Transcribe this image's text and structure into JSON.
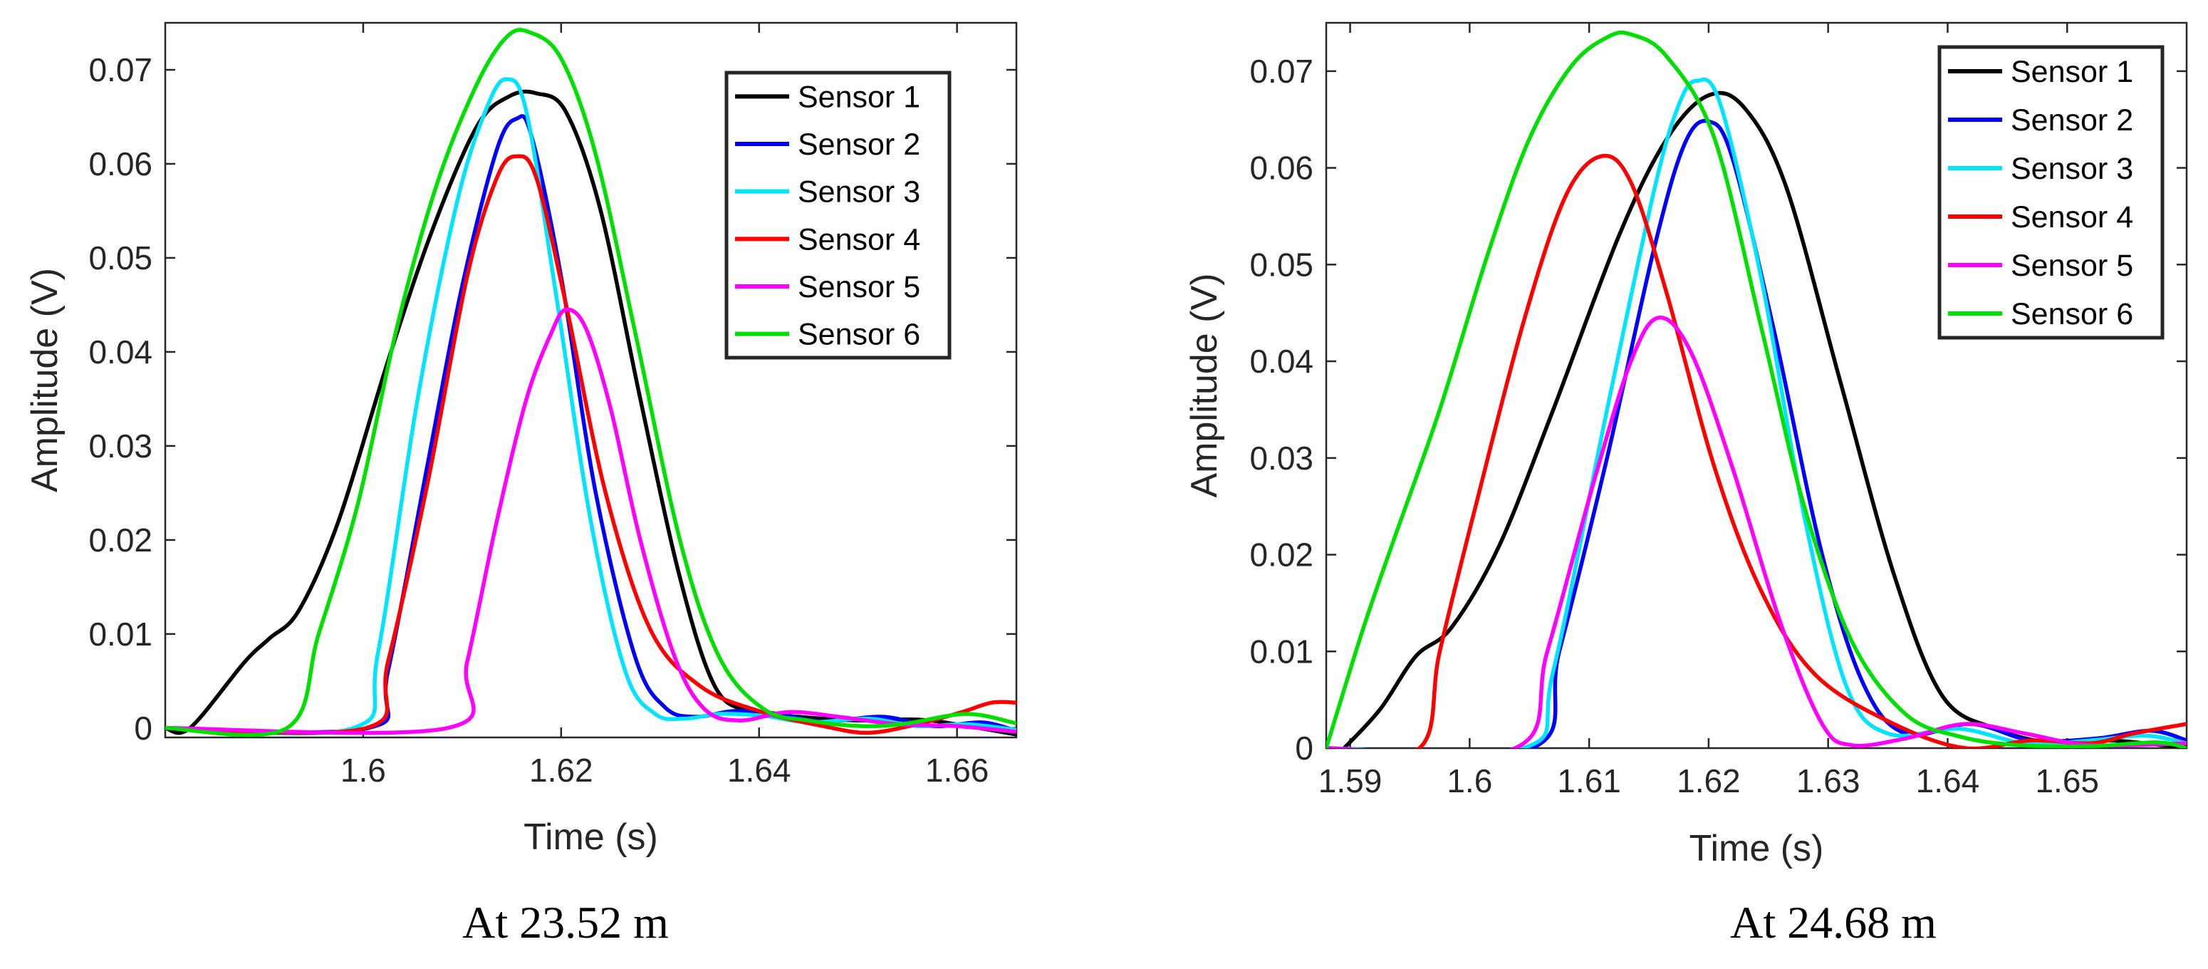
{
  "chart_data": [
    {
      "type": "line",
      "caption": "At 23.52 m",
      "xlabel": "Time (s)",
      "ylabel": "Amplitude (V)",
      "xlim": [
        1.58,
        1.666
      ],
      "ylim": [
        -0.001,
        0.075
      ],
      "xticks": [
        1.6,
        1.62,
        1.64,
        1.66
      ],
      "xtick_labels": [
        "1.6",
        "1.62",
        "1.64",
        "1.66"
      ],
      "yticks": [
        0,
        0.01,
        0.02,
        0.03,
        0.04,
        0.05,
        0.06,
        0.07
      ],
      "ytick_labels": [
        "0",
        "0.01",
        "0.02",
        "0.03",
        "0.04",
        "0.05",
        "0.06",
        "0.07"
      ],
      "legend_position": "top-right",
      "series": [
        {
          "name": "Sensor 1",
          "color": "#000000",
          "points": [
            [
              1.58,
              0
            ],
            [
              1.5825,
              0
            ],
            [
              1.588,
              0.007
            ],
            [
              1.5905,
              0.0095
            ],
            [
              1.5935,
              0.0125
            ],
            [
              1.5975,
              0.022
            ],
            [
              1.6025,
              0.039
            ],
            [
              1.607,
              0.053
            ],
            [
              1.6115,
              0.064
            ],
            [
              1.6148,
              0.0672
            ],
            [
              1.6175,
              0.0675
            ],
            [
              1.6205,
              0.0655
            ],
            [
              1.624,
              0.055
            ],
            [
              1.628,
              0.035
            ],
            [
              1.632,
              0.016
            ],
            [
              1.6355,
              0.0045
            ],
            [
              1.639,
              0.0018
            ],
            [
              1.644,
              0.0012
            ],
            [
              1.65,
              0.0008
            ],
            [
              1.656,
              0.0009
            ],
            [
              1.6605,
              0.0003
            ],
            [
              1.666,
              -0.0007
            ]
          ]
        },
        {
          "name": "Sensor 2",
          "color": "#0000ff",
          "points": [
            [
              1.58,
              0
            ],
            [
              1.6005,
              0
            ],
            [
              1.6025,
              0.006
            ],
            [
              1.6065,
              0.028
            ],
            [
              1.61,
              0.047
            ],
            [
              1.6135,
              0.0615
            ],
            [
              1.6155,
              0.0648
            ],
            [
              1.617,
              0.063
            ],
            [
              1.62,
              0.048
            ],
            [
              1.6235,
              0.025
            ],
            [
              1.6275,
              0.0075
            ],
            [
              1.6305,
              0.0022
            ],
            [
              1.6335,
              0.0012
            ],
            [
              1.6375,
              0.0018
            ],
            [
              1.642,
              0.0015
            ],
            [
              1.6465,
              0.0007
            ],
            [
              1.6525,
              0.0012
            ],
            [
              1.6575,
              0.0002
            ],
            [
              1.6625,
              0.0006
            ],
            [
              1.666,
              -0.0003
            ]
          ]
        },
        {
          "name": "Sensor 3",
          "color": "#00e5ff",
          "points": [
            [
              1.58,
              0
            ],
            [
              1.599,
              0
            ],
            [
              1.6015,
              0.008
            ],
            [
              1.6055,
              0.035
            ],
            [
              1.6095,
              0.056
            ],
            [
              1.6125,
              0.066
            ],
            [
              1.6145,
              0.069
            ],
            [
              1.6165,
              0.0655
            ],
            [
              1.6195,
              0.046
            ],
            [
              1.623,
              0.022
            ],
            [
              1.6265,
              0.006
            ],
            [
              1.6295,
              0.0015
            ],
            [
              1.6325,
              0.001
            ],
            [
              1.636,
              0.0015
            ],
            [
              1.6405,
              0.0013
            ],
            [
              1.645,
              0.0006
            ],
            [
              1.651,
              0.001
            ],
            [
              1.656,
              0.0002
            ],
            [
              1.661,
              0.0004
            ],
            [
              1.666,
              -0.0002
            ]
          ]
        },
        {
          "name": "Sensor 4",
          "color": "#ff0000",
          "points": [
            [
              1.58,
              0
            ],
            [
              1.6003,
              0
            ],
            [
              1.6025,
              0.007
            ],
            [
              1.6065,
              0.026
            ],
            [
              1.6105,
              0.048
            ],
            [
              1.6135,
              0.0585
            ],
            [
              1.6155,
              0.0608
            ],
            [
              1.6175,
              0.0585
            ],
            [
              1.6205,
              0.045
            ],
            [
              1.6245,
              0.025
            ],
            [
              1.629,
              0.0105
            ],
            [
              1.634,
              0.0045
            ],
            [
              1.64,
              0.0018
            ],
            [
              1.6465,
              0.0002
            ],
            [
              1.651,
              -0.0005
            ],
            [
              1.656,
              0.0004
            ],
            [
              1.6605,
              0.0017
            ],
            [
              1.6635,
              0.0027
            ],
            [
              1.666,
              0.0027
            ]
          ]
        },
        {
          "name": "Sensor 5",
          "color": "#ff00ff",
          "points": [
            [
              1.58,
              0
            ],
            [
              1.6085,
              0
            ],
            [
              1.6105,
              0.007
            ],
            [
              1.6135,
              0.022
            ],
            [
              1.6165,
              0.035
            ],
            [
              1.619,
              0.042
            ],
            [
              1.6205,
              0.0445
            ],
            [
              1.6225,
              0.0425
            ],
            [
              1.625,
              0.034
            ],
            [
              1.628,
              0.02
            ],
            [
              1.6315,
              0.0075
            ],
            [
              1.6345,
              0.002
            ],
            [
              1.638,
              0.0008
            ],
            [
              1.643,
              0.0017
            ],
            [
              1.648,
              0.0012
            ],
            [
              1.654,
              0.0004
            ],
            [
              1.66,
              0.0002
            ],
            [
              1.666,
              -0.0004
            ]
          ]
        },
        {
          "name": "Sensor 6",
          "color": "#00e000",
          "points": [
            [
              1.58,
              0
            ],
            [
              1.5923,
              0
            ],
            [
              1.5955,
              0.01
            ],
            [
              1.5995,
              0.024
            ],
            [
              1.6035,
              0.043
            ],
            [
              1.6075,
              0.058
            ],
            [
              1.6115,
              0.0685
            ],
            [
              1.6145,
              0.0735
            ],
            [
              1.6168,
              0.074
            ],
            [
              1.62,
              0.0712
            ],
            [
              1.6235,
              0.061
            ],
            [
              1.6275,
              0.042
            ],
            [
              1.632,
              0.02
            ],
            [
              1.636,
              0.0075
            ],
            [
              1.6405,
              0.002
            ],
            [
              1.645,
              0.0008
            ],
            [
              1.6505,
              0.0002
            ],
            [
              1.655,
              0.0005
            ],
            [
              1.661,
              0.0015
            ],
            [
              1.666,
              0.0005
            ]
          ]
        }
      ]
    },
    {
      "type": "line",
      "caption": "At 24.68 m",
      "xlabel": "Time (s)",
      "ylabel": "Amplitude (V)",
      "xlim": [
        1.588,
        1.66
      ],
      "ylim": [
        0,
        0.075
      ],
      "xticks": [
        1.59,
        1.6,
        1.61,
        1.62,
        1.63,
        1.64,
        1.65
      ],
      "xtick_labels": [
        "1.59",
        "1.6",
        "1.61",
        "1.62",
        "1.63",
        "1.64",
        "1.65"
      ],
      "yticks": [
        0,
        0.01,
        0.02,
        0.03,
        0.04,
        0.05,
        0.06,
        0.07
      ],
      "ytick_labels": [
        "0",
        "0.01",
        "0.02",
        "0.03",
        "0.04",
        "0.05",
        "0.06",
        "0.07"
      ],
      "legend_position": "top-right",
      "series": [
        {
          "name": "Sensor 1",
          "color": "#000000",
          "points": [
            [
              1.5895,
              0
            ],
            [
              1.5925,
              0.004
            ],
            [
              1.5955,
              0.0095
            ],
            [
              1.5985,
              0.0125
            ],
            [
              1.6025,
              0.021
            ],
            [
              1.607,
              0.035
            ],
            [
              1.6125,
              0.053
            ],
            [
              1.6165,
              0.063
            ],
            [
              1.62,
              0.0675
            ],
            [
              1.623,
              0.0662
            ],
            [
              1.6265,
              0.058
            ],
            [
              1.631,
              0.038
            ],
            [
              1.6355,
              0.018
            ],
            [
              1.6395,
              0.0055
            ],
            [
              1.644,
              0.002
            ],
            [
              1.649,
              0.0005
            ],
            [
              1.6535,
              0.0008
            ],
            [
              1.658,
              0.0003
            ],
            [
              1.66,
              0.0001
            ]
          ]
        },
        {
          "name": "Sensor 2",
          "color": "#0000ff",
          "points": [
            [
              1.588,
              0
            ],
            [
              1.6052,
              0
            ],
            [
              1.6075,
              0.01
            ],
            [
              1.6115,
              0.03
            ],
            [
              1.6155,
              0.052
            ],
            [
              1.618,
              0.0625
            ],
            [
              1.62,
              0.0648
            ],
            [
              1.622,
              0.061
            ],
            [
              1.6255,
              0.043
            ],
            [
              1.6295,
              0.02
            ],
            [
              1.633,
              0.0065
            ],
            [
              1.6365,
              0.0015
            ],
            [
              1.642,
              0.0025
            ],
            [
              1.647,
              0.0008
            ],
            [
              1.6525,
              0.001
            ],
            [
              1.657,
              0.0018
            ],
            [
              1.66,
              0.0008
            ]
          ]
        },
        {
          "name": "Sensor 3",
          "color": "#00e5ff",
          "points": [
            [
              1.588,
              0
            ],
            [
              1.6045,
              0
            ],
            [
              1.607,
              0.008
            ],
            [
              1.6115,
              0.035
            ],
            [
              1.6155,
              0.058
            ],
            [
              1.6175,
              0.0665
            ],
            [
              1.619,
              0.069
            ],
            [
              1.621,
              0.0665
            ],
            [
              1.6245,
              0.048
            ],
            [
              1.628,
              0.024
            ],
            [
              1.6315,
              0.0065
            ],
            [
              1.635,
              0.0015
            ],
            [
              1.641,
              0.002
            ],
            [
              1.6465,
              0.0005
            ],
            [
              1.652,
              0.0008
            ],
            [
              1.6565,
              0.0013
            ],
            [
              1.66,
              0.0005
            ]
          ]
        },
        {
          "name": "Sensor 4",
          "color": "#ff0000",
          "points": [
            [
              1.588,
              0
            ],
            [
              1.5958,
              0
            ],
            [
              1.5975,
              0.01
            ],
            [
              1.6005,
              0.025
            ],
            [
              1.6045,
              0.044
            ],
            [
              1.608,
              0.057
            ],
            [
              1.611,
              0.0612
            ],
            [
              1.6135,
              0.0585
            ],
            [
              1.6165,
              0.047
            ],
            [
              1.6205,
              0.029
            ],
            [
              1.6245,
              0.016
            ],
            [
              1.629,
              0.0075
            ],
            [
              1.6355,
              0.0025
            ],
            [
              1.6415,
              0
            ],
            [
              1.647,
              0.0008
            ],
            [
              1.652,
              0.0005
            ],
            [
              1.6555,
              0.0015
            ],
            [
              1.66,
              0.0025
            ]
          ]
        },
        {
          "name": "Sensor 5",
          "color": "#ff00ff",
          "points": [
            [
              1.588,
              0
            ],
            [
              1.6038,
              0
            ],
            [
              1.6065,
              0.01
            ],
            [
              1.6105,
              0.028
            ],
            [
              1.6135,
              0.04
            ],
            [
              1.6158,
              0.0445
            ],
            [
              1.6185,
              0.041
            ],
            [
              1.622,
              0.029
            ],
            [
              1.626,
              0.013
            ],
            [
              1.6295,
              0.0025
            ],
            [
              1.632,
              0.0003
            ],
            [
              1.6365,
              0.001
            ],
            [
              1.6415,
              0.0025
            ],
            [
              1.6465,
              0.0015
            ],
            [
              1.652,
              0.0003
            ],
            [
              1.66,
              0.0005
            ]
          ]
        },
        {
          "name": "Sensor 6",
          "color": "#00e000",
          "points": [
            [
              1.588,
              0
            ],
            [
              1.591,
              0.012
            ],
            [
              1.5935,
              0.021
            ],
            [
              1.5975,
              0.035
            ],
            [
              1.6015,
              0.051
            ],
            [
              1.605,
              0.063
            ],
            [
              1.6085,
              0.0705
            ],
            [
              1.6115,
              0.0735
            ],
            [
              1.6135,
              0.0738
            ],
            [
              1.6165,
              0.0715
            ],
            [
              1.6205,
              0.063
            ],
            [
              1.6245,
              0.043
            ],
            [
              1.628,
              0.025
            ],
            [
              1.632,
              0.011
            ],
            [
              1.6365,
              0.0035
            ],
            [
              1.641,
              0.0012
            ],
            [
              1.646,
              0.0003
            ],
            [
              1.652,
              0.0002
            ],
            [
              1.6575,
              0.0006
            ],
            [
              1.66,
              0
            ]
          ]
        }
      ]
    }
  ]
}
